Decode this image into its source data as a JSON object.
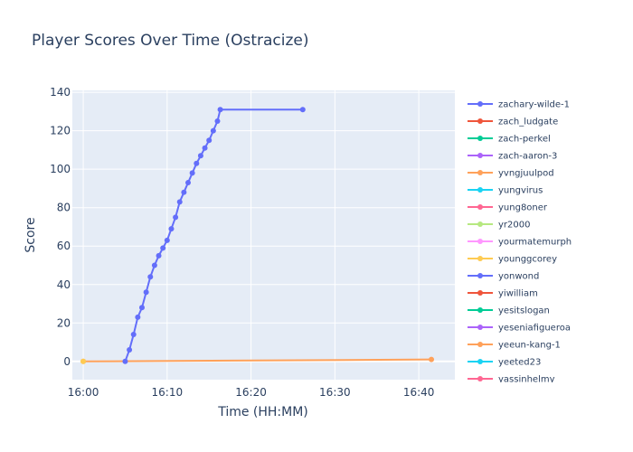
{
  "chart_data": {
    "type": "line",
    "title": "Player Scores Over Time (Ostracize)",
    "xlabel": "Time (HH:MM)",
    "ylabel": "Score",
    "x_tick_labels": [
      "16:00",
      "16:10",
      "16:20",
      "16:30",
      "16:40"
    ],
    "x_ticks_minutes": [
      0,
      10,
      20,
      30,
      40
    ],
    "xlim_minutes": [
      -1.3,
      44.3
    ],
    "y_ticks": [
      0,
      20,
      40,
      60,
      80,
      100,
      120,
      140
    ],
    "ylim": [
      -9.5,
      141
    ],
    "grid": true,
    "legend_position": "right",
    "series": [
      {
        "name": "zachary-wilde-1",
        "color": "#636efa",
        "x": [
          "16:05:00",
          "16:05:30",
          "16:06:00",
          "16:06:30",
          "16:07:00",
          "16:07:30",
          "16:08:00",
          "16:08:30",
          "16:09:00",
          "16:09:30",
          "16:10:00",
          "16:10:30",
          "16:11:00",
          "16:11:30",
          "16:12:00",
          "16:12:30",
          "16:13:00",
          "16:13:30",
          "16:14:00",
          "16:14:30",
          "16:15:00",
          "16:15:30",
          "16:16:00",
          "16:16:20",
          "16:26:10"
        ],
        "y": [
          0,
          6,
          14,
          23,
          28,
          36,
          44,
          50,
          55,
          59,
          63,
          69,
          75,
          83,
          88,
          93,
          98,
          103,
          107,
          111,
          115,
          120,
          125,
          131,
          131
        ]
      },
      {
        "name": "zach_ludgate",
        "color": "#ef553b",
        "x": [],
        "y": []
      },
      {
        "name": "zach-perkel",
        "color": "#00cc96",
        "x": [],
        "y": []
      },
      {
        "name": "zach-aaron-3",
        "color": "#ab63fa",
        "x": [],
        "y": []
      },
      {
        "name": "yvngjuulpod",
        "color": "#ffa15a",
        "x": [
          "16:00:00",
          "16:41:30"
        ],
        "y": [
          0,
          1
        ]
      },
      {
        "name": "yungvirus",
        "color": "#19d3f3",
        "x": [],
        "y": []
      },
      {
        "name": "yung8oner",
        "color": "#ff6692",
        "x": [],
        "y": []
      },
      {
        "name": "yr2000",
        "color": "#b6e880",
        "x": [],
        "y": []
      },
      {
        "name": "yourmatemurph",
        "color": "#ff97ff",
        "x": [],
        "y": []
      },
      {
        "name": "younggcorey",
        "color": "#fecb52",
        "x": [
          "16:00:00"
        ],
        "y": [
          0
        ]
      },
      {
        "name": "yonwond",
        "color": "#636efa",
        "x": [],
        "y": []
      },
      {
        "name": "yiwilliam",
        "color": "#ef553b",
        "x": [],
        "y": []
      },
      {
        "name": "yesitslogan",
        "color": "#00cc96",
        "x": [],
        "y": []
      },
      {
        "name": "yeseniafigueroa",
        "color": "#ab63fa",
        "x": [],
        "y": []
      },
      {
        "name": "yeeun-kang-1",
        "color": "#ffa15a",
        "x": [],
        "y": []
      },
      {
        "name": "yeeted23",
        "color": "#19d3f3",
        "x": [],
        "y": []
      },
      {
        "name": "yassinhelmy",
        "color": "#ff6692",
        "x": [],
        "y": []
      }
    ]
  }
}
